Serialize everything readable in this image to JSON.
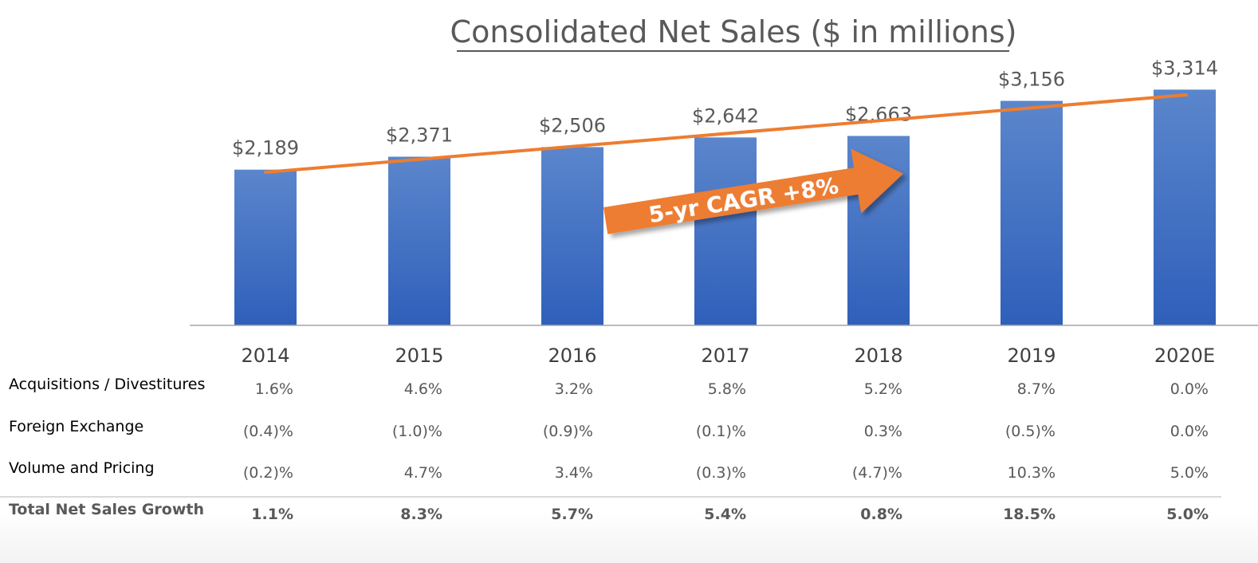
{
  "colors": {
    "bar_top": "#5b86cc",
    "bar_bottom": "#2f5fba",
    "trend": "#ed7d31",
    "arrow": "#ed7d31",
    "text": "#595959",
    "axis": "#a6a6a6"
  },
  "chart_data": {
    "type": "bar",
    "title": "Consolidated Net Sales ($ in millions)",
    "categories": [
      "2014",
      "2015",
      "2016",
      "2017",
      "2018",
      "2019",
      "2020E"
    ],
    "values": [
      2189,
      2371,
      2506,
      2642,
      2663,
      3156,
      3314
    ],
    "value_labels": [
      "$2,189",
      "$2,371",
      "$2,506",
      "$2,642",
      "$2,663",
      "$3,156",
      "$3,314"
    ],
    "trendline": true,
    "annotation": "5-yr CAGR +8%",
    "grid": false,
    "legend": "none"
  },
  "table": {
    "rows": [
      {
        "label": "Acquisitions / Divestitures",
        "values": [
          "1.6%",
          "4.6%",
          "3.2%",
          "5.8%",
          "5.2%",
          "8.7%",
          "0.0%"
        ],
        "total": false
      },
      {
        "label": "Foreign Exchange",
        "values": [
          "(0.4)%",
          "(1.0)%",
          "(0.9)%",
          "(0.1)%",
          "0.3%",
          "(0.5)%",
          "0.0%"
        ],
        "total": false
      },
      {
        "label": "Volume and Pricing",
        "values": [
          "(0.2)%",
          "4.7%",
          "3.4%",
          "(0.3)%",
          "(4.7)%",
          "10.3%",
          "5.0%"
        ],
        "total": false
      },
      {
        "label": "Total Net Sales Growth",
        "values": [
          "1.1%",
          "8.3%",
          "5.7%",
          "5.4%",
          "0.8%",
          "18.5%",
          "5.0%"
        ],
        "total": true
      }
    ]
  }
}
